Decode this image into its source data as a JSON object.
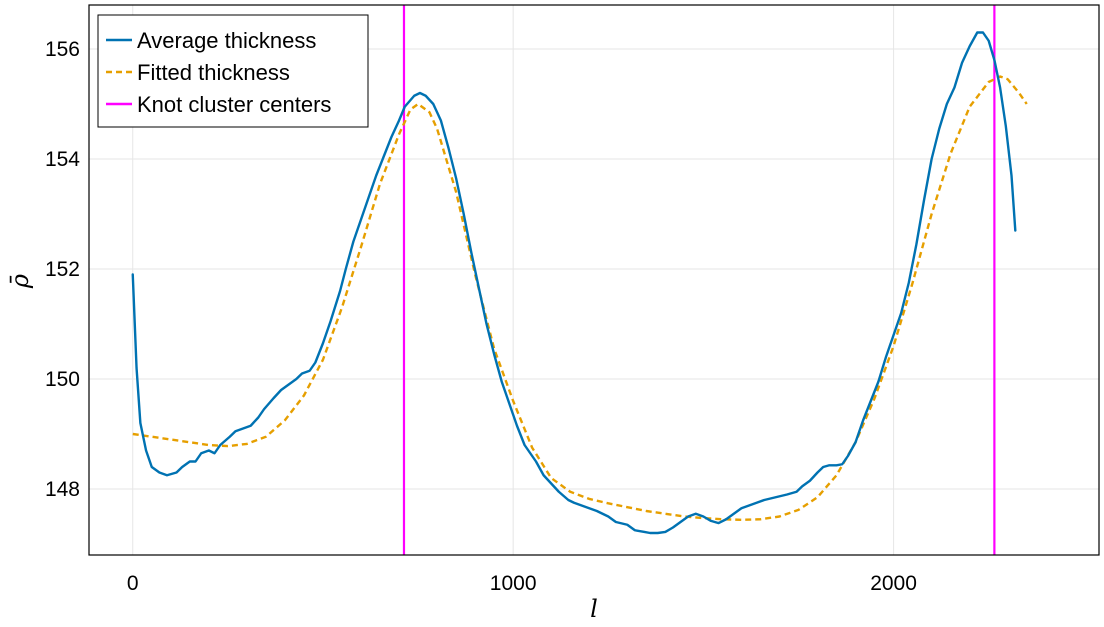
{
  "chart_data": {
    "type": "line",
    "xlabel": "l",
    "ylabel": "ρ̄",
    "xlim": [
      -115,
      2540
    ],
    "ylim": [
      146.8,
      156.8
    ],
    "xticks": [
      0,
      1000,
      2000
    ],
    "yticks": [
      148,
      150,
      152,
      154,
      156
    ],
    "xtick_labels": [
      "0",
      "1000",
      "2000"
    ],
    "ytick_labels": [
      "148",
      "150",
      "152",
      "154",
      "156"
    ],
    "grid": true,
    "legend_position": "top-left",
    "series": [
      {
        "name": "Average thickness",
        "color": "#0072b2",
        "style": "solid",
        "points": [
          [
            0,
            151.9
          ],
          [
            10,
            150.2
          ],
          [
            20,
            149.2
          ],
          [
            35,
            148.7
          ],
          [
            50,
            148.4
          ],
          [
            70,
            148.3
          ],
          [
            90,
            148.25
          ],
          [
            115,
            148.3
          ],
          [
            130,
            148.4
          ],
          [
            150,
            148.5
          ],
          [
            165,
            148.5
          ],
          [
            180,
            148.65
          ],
          [
            200,
            148.7
          ],
          [
            215,
            148.65
          ],
          [
            230,
            148.8
          ],
          [
            255,
            148.95
          ],
          [
            270,
            149.05
          ],
          [
            290,
            149.1
          ],
          [
            310,
            149.15
          ],
          [
            330,
            149.3
          ],
          [
            345,
            149.45
          ],
          [
            370,
            149.65
          ],
          [
            390,
            149.8
          ],
          [
            410,
            149.9
          ],
          [
            430,
            150.0
          ],
          [
            445,
            150.1
          ],
          [
            465,
            150.15
          ],
          [
            480,
            150.3
          ],
          [
            500,
            150.65
          ],
          [
            520,
            151.05
          ],
          [
            545,
            151.6
          ],
          [
            560,
            152.0
          ],
          [
            580,
            152.5
          ],
          [
            600,
            152.9
          ],
          [
            620,
            153.3
          ],
          [
            640,
            153.7
          ],
          [
            660,
            154.05
          ],
          [
            680,
            154.4
          ],
          [
            700,
            154.7
          ],
          [
            715,
            154.95
          ],
          [
            740,
            155.15
          ],
          [
            755,
            155.2
          ],
          [
            770,
            155.15
          ],
          [
            790,
            155.0
          ],
          [
            810,
            154.7
          ],
          [
            830,
            154.2
          ],
          [
            850,
            153.65
          ],
          [
            870,
            153.0
          ],
          [
            890,
            152.3
          ],
          [
            910,
            151.65
          ],
          [
            930,
            151.0
          ],
          [
            950,
            150.45
          ],
          [
            970,
            149.95
          ],
          [
            990,
            149.55
          ],
          [
            1010,
            149.15
          ],
          [
            1030,
            148.8
          ],
          [
            1060,
            148.5
          ],
          [
            1080,
            148.25
          ],
          [
            1100,
            148.1
          ],
          [
            1120,
            147.95
          ],
          [
            1145,
            147.8
          ],
          [
            1160,
            147.75
          ],
          [
            1180,
            147.7
          ],
          [
            1200,
            147.65
          ],
          [
            1220,
            147.6
          ],
          [
            1250,
            147.5
          ],
          [
            1270,
            147.4
          ],
          [
            1300,
            147.35
          ],
          [
            1320,
            147.25
          ],
          [
            1345,
            147.22
          ],
          [
            1360,
            147.2
          ],
          [
            1380,
            147.2
          ],
          [
            1400,
            147.22
          ],
          [
            1420,
            147.3
          ],
          [
            1440,
            147.4
          ],
          [
            1460,
            147.5
          ],
          [
            1480,
            147.55
          ],
          [
            1500,
            147.5
          ],
          [
            1520,
            147.42
          ],
          [
            1540,
            147.38
          ],
          [
            1560,
            147.45
          ],
          [
            1580,
            147.55
          ],
          [
            1600,
            147.65
          ],
          [
            1620,
            147.7
          ],
          [
            1640,
            147.75
          ],
          [
            1660,
            147.8
          ],
          [
            1690,
            147.85
          ],
          [
            1720,
            147.9
          ],
          [
            1745,
            147.95
          ],
          [
            1760,
            148.05
          ],
          [
            1780,
            148.15
          ],
          [
            1800,
            148.3
          ],
          [
            1815,
            148.4
          ],
          [
            1830,
            148.43
          ],
          [
            1850,
            148.43
          ],
          [
            1865,
            148.45
          ],
          [
            1880,
            148.6
          ],
          [
            1900,
            148.85
          ],
          [
            1920,
            149.25
          ],
          [
            1940,
            149.6
          ],
          [
            1960,
            149.95
          ],
          [
            1980,
            150.4
          ],
          [
            2000,
            150.8
          ],
          [
            2020,
            151.2
          ],
          [
            2040,
            151.75
          ],
          [
            2060,
            152.45
          ],
          [
            2080,
            153.25
          ],
          [
            2100,
            154.0
          ],
          [
            2120,
            154.55
          ],
          [
            2140,
            155.0
          ],
          [
            2160,
            155.3
          ],
          [
            2180,
            155.75
          ],
          [
            2200,
            156.05
          ],
          [
            2220,
            156.3
          ],
          [
            2235,
            156.3
          ],
          [
            2250,
            156.15
          ],
          [
            2265,
            155.8
          ],
          [
            2280,
            155.3
          ],
          [
            2295,
            154.6
          ],
          [
            2310,
            153.7
          ],
          [
            2320,
            152.7
          ]
        ]
      },
      {
        "name": "Fitted thickness",
        "color": "#e69f00",
        "style": "dashed",
        "points": [
          [
            0,
            149.0
          ],
          [
            50,
            148.95
          ],
          [
            100,
            148.9
          ],
          [
            150,
            148.85
          ],
          [
            200,
            148.8
          ],
          [
            250,
            148.78
          ],
          [
            300,
            148.82
          ],
          [
            350,
            148.95
          ],
          [
            400,
            149.25
          ],
          [
            450,
            149.7
          ],
          [
            500,
            150.35
          ],
          [
            550,
            151.3
          ],
          [
            600,
            152.4
          ],
          [
            650,
            153.55
          ],
          [
            700,
            154.45
          ],
          [
            730,
            154.9
          ],
          [
            750,
            155.0
          ],
          [
            780,
            154.85
          ],
          [
            800,
            154.55
          ],
          [
            850,
            153.4
          ],
          [
            900,
            151.9
          ],
          [
            950,
            150.55
          ],
          [
            1000,
            149.6
          ],
          [
            1050,
            148.75
          ],
          [
            1100,
            148.2
          ],
          [
            1150,
            147.95
          ],
          [
            1200,
            147.82
          ],
          [
            1250,
            147.74
          ],
          [
            1300,
            147.67
          ],
          [
            1350,
            147.6
          ],
          [
            1400,
            147.55
          ],
          [
            1450,
            147.5
          ],
          [
            1500,
            147.47
          ],
          [
            1550,
            147.45
          ],
          [
            1600,
            147.44
          ],
          [
            1650,
            147.45
          ],
          [
            1700,
            147.5
          ],
          [
            1750,
            147.62
          ],
          [
            1800,
            147.85
          ],
          [
            1850,
            148.25
          ],
          [
            1900,
            148.85
          ],
          [
            1950,
            149.65
          ],
          [
            2000,
            150.6
          ],
          [
            2050,
            151.75
          ],
          [
            2100,
            153.0
          ],
          [
            2150,
            154.1
          ],
          [
            2200,
            154.95
          ],
          [
            2250,
            155.4
          ],
          [
            2280,
            155.5
          ],
          [
            2300,
            155.45
          ],
          [
            2330,
            155.2
          ],
          [
            2350,
            155.0
          ]
        ]
      },
      {
        "name": "Knot cluster centers",
        "color": "#ff00ff",
        "style": "vertical-lines",
        "x_positions": [
          713,
          2265
        ]
      }
    ]
  }
}
